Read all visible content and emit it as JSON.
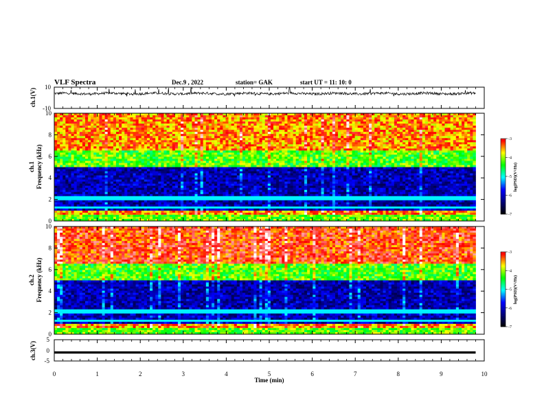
{
  "header": {
    "title": "VLF Spectra",
    "date": "Dec.9 , 2022",
    "station": "station= GAK",
    "start": "start UT =  11: 10: 0"
  },
  "chart_data": [
    {
      "type": "line",
      "ylabel": "ch.1(V)",
      "ylim": [
        -10,
        10
      ],
      "yticks": [
        "10",
        "-10"
      ],
      "xlim": [
        0,
        10
      ],
      "signal_min_approx": 2,
      "signal_max_approx": 6,
      "signal_mean_approx": 4
    },
    {
      "type": "heatmap",
      "ylabel": "ch.1\nFrequency (kHz)",
      "ylabel_lines": [
        "ch.1",
        "Frequency (kHz)"
      ],
      "ylim": [
        0,
        10
      ],
      "yticks": [
        "0",
        "2",
        "4",
        "6",
        "8",
        "10"
      ],
      "xlim": [
        0,
        10
      ],
      "colorbar": {
        "label": "log(PSD)(V²/Hz)",
        "range": [
          -7,
          -3
        ],
        "ticks": [
          "-3",
          "-4",
          "-5",
          "-6",
          "-7"
        ]
      },
      "bands_approx_khz": [
        {
          "from": 0,
          "to": 1,
          "level": "high"
        },
        {
          "from": 1,
          "to": 5,
          "level": "low"
        },
        {
          "from": 5,
          "to": 6.5,
          "level": "medium"
        },
        {
          "from": 6.5,
          "to": 10,
          "level": "high"
        }
      ]
    },
    {
      "type": "heatmap",
      "ylabel": "ch.2\nFrequency (kHz)",
      "ylabel_lines": [
        "ch.2",
        "Frequency (kHz)"
      ],
      "ylim": [
        0,
        10
      ],
      "yticks": [
        "0",
        "2",
        "4",
        "6",
        "8",
        "10"
      ],
      "xlim": [
        0,
        10
      ],
      "colorbar": {
        "label": "log(PSD)(V²/Hz)",
        "range": [
          -7,
          -3
        ],
        "ticks": [
          "-3",
          "-4",
          "-5",
          "-6",
          "-7"
        ]
      },
      "bands_approx_khz": [
        {
          "from": 0,
          "to": 1,
          "level": "high"
        },
        {
          "from": 1,
          "to": 5,
          "level": "low"
        },
        {
          "from": 5,
          "to": 6.5,
          "level": "medium"
        },
        {
          "from": 6.5,
          "to": 10,
          "level": "high"
        }
      ]
    },
    {
      "type": "line",
      "ylabel": "ch.3(V)",
      "ylim": [
        -5,
        5
      ],
      "yticks": [
        "5",
        "0",
        "-5"
      ],
      "xlim": [
        0,
        10
      ],
      "constant_value": -1
    }
  ],
  "xaxis": {
    "label": "Time  (min)",
    "ticks": [
      "0",
      "1",
      "2",
      "3",
      "4",
      "5",
      "6",
      "7",
      "8",
      "9",
      "10"
    ],
    "data_end_min": 9.8
  },
  "colors": {
    "line": "#000000",
    "colormap": [
      "#000000",
      "#00007a",
      "#0000ff",
      "#00ffff",
      "#00ff00",
      "#ffff00",
      "#ff0000",
      "#ffffff"
    ]
  }
}
